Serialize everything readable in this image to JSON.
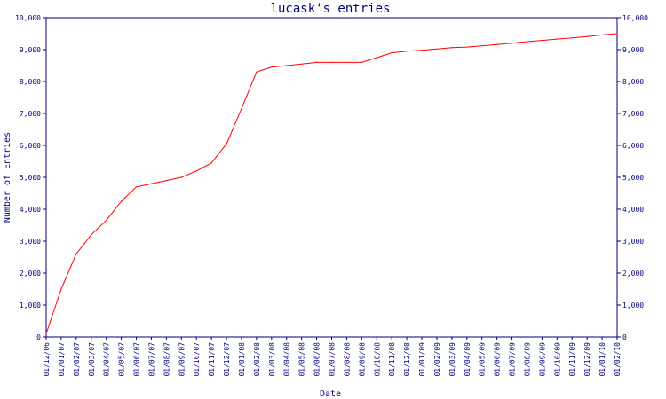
{
  "chart_data": {
    "type": "line",
    "title": "lucask's entries",
    "xlabel": "Date",
    "ylabel": "Number of Entries",
    "ylim": [
      0,
      10000
    ],
    "yticks": [
      "0",
      "1,000",
      "2,000",
      "3,000",
      "4,000",
      "5,000",
      "6,000",
      "7,000",
      "8,000",
      "9,000",
      "10,000"
    ],
    "x_tick_labels": [
      "01/12/06",
      "01/01/07",
      "01/02/07",
      "01/03/07",
      "01/04/07",
      "01/05/07",
      "01/06/07",
      "01/07/07",
      "01/08/07",
      "01/09/07",
      "01/10/07",
      "01/11/07",
      "01/12/07",
      "01/01/08",
      "01/02/08",
      "01/03/08",
      "01/04/08",
      "01/05/08",
      "01/06/08",
      "01/07/08",
      "01/08/08",
      "01/09/08",
      "01/10/08",
      "01/11/08",
      "01/12/08",
      "01/01/09",
      "01/02/09",
      "01/03/09",
      "01/04/09",
      "01/05/09",
      "01/06/09",
      "01/07/09",
      "01/08/09",
      "01/09/09",
      "01/10/09",
      "01/11/09",
      "01/12/09",
      "01/01/10",
      "01/02/10"
    ],
    "grid": false,
    "line_color": "#ff0000",
    "axis_color": "#000080",
    "series": [
      {
        "x": [
          "01/12/06",
          "01/01/07",
          "01/02/07",
          "01/03/07",
          "01/04/07",
          "01/05/07",
          "01/06/07",
          "01/07/07",
          "01/08/07",
          "01/09/07",
          "01/10/07",
          "01/11/07",
          "01/12/07",
          "01/01/08",
          "01/02/08",
          "01/03/08",
          "01/04/08",
          "01/05/08",
          "01/06/08",
          "01/07/08",
          "01/08/08",
          "01/09/08",
          "01/10/08",
          "01/11/08",
          "01/12/08",
          "01/01/09",
          "01/02/09",
          "01/03/09",
          "01/04/09",
          "01/05/09",
          "01/06/09",
          "01/07/09",
          "01/08/09",
          "01/09/09",
          "01/10/09",
          "01/11/09",
          "01/12/09",
          "01/01/10",
          "01/02/10"
        ],
        "values": [
          100,
          1500,
          2600,
          3200,
          3650,
          4250,
          4700,
          4800,
          4900,
          5000,
          5200,
          5450,
          6050,
          7150,
          8300,
          8450,
          8500,
          8550,
          8600,
          8600,
          8600,
          8600,
          8750,
          8900,
          8950,
          8980,
          9020,
          9060,
          9080,
          9120,
          9160,
          9200,
          9250,
          9290,
          9330,
          9370,
          9410,
          9460,
          9500
        ]
      }
    ]
  }
}
